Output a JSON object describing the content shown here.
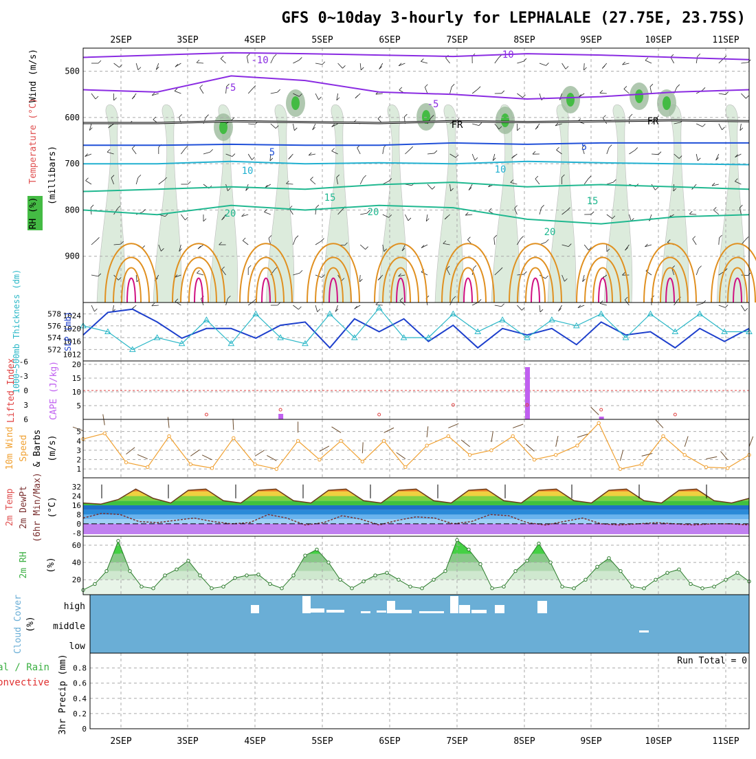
{
  "title": "GFS 0~10day 3-hourly for LEPHALALE (27.75E, 23.75S)",
  "date_labels": [
    "2SEP",
    "3SEP",
    "4SEP",
    "5SEP",
    "6SEP",
    "7SEP",
    "8SEP",
    "9SEP",
    "10SEP",
    "11SEP"
  ],
  "colors": {
    "wind_purple": "#8a2be2",
    "temp_blue": "#1f4fd8",
    "temp_cyan": "#20b0d0",
    "temp_teal": "#20b890",
    "temp_orange": "#e09020",
    "temp_magenta": "#d01080",
    "rh_green": "#3cb043",
    "cloud_blue": "#6aaed6",
    "slp_blue": "#1d3fcc",
    "thick_cyan": "#2ab7c7",
    "lifted_red": "#e04040",
    "cape_violet": "#c060f0",
    "wind_orange": "#f0a030",
    "precip_green": "#3cb043",
    "precip_red": "#e03030"
  },
  "panels": {
    "upper": {
      "label_wind": "Wind (m/s)",
      "label_temp": "Temperature (°C)",
      "label_rh": "RH (%)",
      "label_mb": "(millibars)",
      "freezing_label": "FR",
      "isotherm_labels": [
        "-10",
        "-5",
        "5",
        "10",
        "15",
        "20",
        "-10",
        "-5",
        "5",
        "10",
        "15",
        "20",
        "10",
        "10",
        "10",
        "10"
      ]
    },
    "thickness": {
      "label_left": "1000~500mb Thickness (dm)",
      "label_right": "SLP (mb)"
    },
    "stability": {
      "label_left": "Lifted Index",
      "label_right": "CAPE (J/kg)"
    },
    "wind10": {
      "label_a": "10m Wind",
      "label_b": "Speed",
      "label_c": "& Barbs",
      "label_unit": "(m/s)"
    },
    "temp2m": {
      "label_a": "2m Temp",
      "label_b": "2m DewPt",
      "label_c": "(6hr Min/Max)",
      "label_unit": "(°C)"
    },
    "rh2m": {
      "label_a": "2m RH",
      "label_unit": "(%)"
    },
    "cloud": {
      "label_a": "Cloud Cover",
      "label_unit": "(%)",
      "levels": [
        "high",
        "middle",
        "low"
      ]
    },
    "precip": {
      "label_a": "Total / Rain",
      "label_b": "Convective",
      "label_c": "3hr Precip (mm)",
      "run_total": "Run Total = 0"
    }
  },
  "chart_data": [
    {
      "type": "line",
      "title": "GFS 0~10day 3-hourly for LEPHALALE (27.75E, 23.75S)",
      "panel": "upper-air time-pressure cross section",
      "ylabel": "(millibars)",
      "y_ticks": [
        500,
        600,
        700,
        800,
        900
      ],
      "ylim": [
        1000,
        450
      ],
      "x_categories": [
        "2SEP",
        "3SEP",
        "4SEP",
        "5SEP",
        "6SEP",
        "7SEP",
        "8SEP",
        "9SEP",
        "10SEP",
        "11SEP"
      ],
      "series": [
        {
          "name": "-10",
          "values": [
            470,
            465,
            460,
            462,
            465,
            468,
            462,
            465,
            470,
            475
          ]
        },
        {
          "name": "-5",
          "values": [
            540,
            545,
            510,
            520,
            545,
            550,
            560,
            555,
            545,
            540
          ]
        },
        {
          "name": "FR",
          "values": [
            612,
            612,
            608,
            610,
            612,
            608,
            610,
            608,
            606,
            608
          ]
        },
        {
          "name": "5",
          "values": [
            660,
            660,
            658,
            660,
            660,
            655,
            658,
            655,
            655,
            655
          ]
        },
        {
          "name": "10",
          "values": [
            700,
            700,
            695,
            700,
            698,
            700,
            695,
            698,
            700,
            702
          ]
        },
        {
          "name": "15",
          "values": [
            760,
            755,
            750,
            755,
            745,
            740,
            750,
            745,
            750,
            755
          ]
        },
        {
          "name": "20",
          "values": [
            800,
            810,
            790,
            800,
            790,
            795,
            820,
            830,
            815,
            810
          ]
        }
      ]
    },
    {
      "type": "line",
      "panel": "1000~500mb Thickness (dm) / SLP (mb)",
      "y_ticks_left": [
        572,
        574,
        576,
        578
      ],
      "y_ticks_right": [
        1012,
        1016,
        1020,
        1024
      ],
      "series": [
        {
          "name": "SLP (mb)",
          "values": [
            1018,
            1025,
            1026,
            1022,
            1017,
            1020,
            1020,
            1017,
            1021,
            1022,
            1014,
            1023,
            1019,
            1023,
            1016,
            1021,
            1014,
            1020,
            1018,
            1020,
            1015,
            1022,
            1018,
            1019,
            1014,
            1020,
            1016,
            1020
          ]
        },
        {
          "name": "1000~500mb Thickness (dm)",
          "values": [
            576,
            575,
            572,
            574,
            573,
            577,
            573,
            578,
            574,
            573,
            578,
            574,
            579,
            574,
            574,
            578,
            575,
            577,
            574,
            577,
            576,
            578,
            574,
            578,
            575,
            578,
            575,
            575
          ]
        }
      ]
    },
    {
      "type": "bar",
      "panel": "Lifted Index / CAPE (J/kg)",
      "y_ticks_left": [
        -6,
        -3,
        0,
        3,
        6
      ],
      "y_ticks_right": [
        5,
        10,
        15,
        20
      ],
      "series": [
        {
          "name": "CAPE (J/kg)",
          "values": [
            0,
            0,
            0,
            0,
            0,
            0,
            0,
            0,
            2,
            0,
            0,
            0,
            0,
            0,
            0,
            0,
            0,
            0,
            19,
            0,
            0,
            1,
            0,
            0,
            0,
            0,
            0,
            0
          ]
        },
        {
          "name": "Lifted Index",
          "values": [
            6,
            6,
            6,
            6,
            6,
            5,
            6,
            6,
            4,
            6,
            6,
            6,
            5,
            6,
            6,
            3,
            6,
            6,
            3,
            6,
            6,
            4,
            6,
            6,
            5,
            6,
            6,
            6
          ]
        }
      ]
    },
    {
      "type": "line",
      "panel": "10m Wind Speed & Barbs",
      "ylabel": "(m/s)",
      "y_ticks": [
        1,
        2,
        3,
        4,
        5
      ],
      "series": [
        {
          "name": "10m Wind Speed",
          "values": [
            4.2,
            4.8,
            1.7,
            1.2,
            4.5,
            1.5,
            1.1,
            4.3,
            1.5,
            1.0,
            4.0,
            2.0,
            4.0,
            1.8,
            4.0,
            1.2,
            3.5,
            4.5,
            2.5,
            3.0,
            4.5,
            2.0,
            2.5,
            3.5,
            5.9,
            1.0,
            1.5,
            4.5,
            2.5,
            1.2,
            1.1,
            2.5
          ]
        }
      ]
    },
    {
      "type": "area",
      "panel": "2m Temp / 2m DewPt (6hr Min/Max)",
      "ylabel": "(°C)",
      "y_ticks": [
        -8,
        0,
        8,
        16,
        24,
        32
      ],
      "series": [
        {
          "name": "2m Temp",
          "values": [
            18,
            17,
            21,
            30,
            22,
            18,
            29,
            30,
            20,
            18,
            29,
            30,
            20,
            18,
            29,
            30,
            20,
            18,
            29,
            30,
            20,
            18,
            29,
            30,
            20,
            18,
            29,
            30,
            20,
            18,
            29,
            30,
            20,
            18,
            29,
            30,
            20,
            18,
            22
          ]
        },
        {
          "name": "2m DewPt",
          "values": [
            5,
            9,
            8,
            2,
            1,
            3,
            5,
            2,
            0,
            1,
            8,
            5,
            -1,
            1,
            7,
            4,
            -1,
            3,
            6,
            5,
            0,
            2,
            8,
            7,
            1,
            -1,
            2,
            5,
            0,
            -1,
            0,
            1,
            0,
            -1,
            0,
            0,
            -1
          ]
        }
      ]
    },
    {
      "type": "area",
      "panel": "2m RH",
      "ylabel": "(%)",
      "y_ticks": [
        20,
        40,
        60
      ],
      "series": [
        {
          "name": "2m RH",
          "values": [
            8,
            15,
            30,
            65,
            30,
            12,
            10,
            25,
            32,
            42,
            25,
            10,
            12,
            22,
            25,
            26,
            15,
            10,
            25,
            48,
            55,
            40,
            20,
            10,
            18,
            25,
            28,
            20,
            12,
            10,
            20,
            30,
            66,
            55,
            38,
            10,
            12,
            30,
            42,
            62,
            40,
            12,
            10,
            20,
            35,
            45,
            30,
            12,
            10,
            20,
            28,
            32,
            15,
            10,
            12,
            20,
            28,
            18
          ]
        }
      ]
    },
    {
      "type": "bar",
      "panel": "Cloud Cover",
      "categories": [
        "high",
        "middle",
        "low"
      ]
    },
    {
      "type": "bar",
      "panel": "3hr Precip (mm)",
      "ylabel": "3hr Precip (mm)",
      "y_ticks": [
        0,
        0.2,
        0.4,
        0.6,
        0.8
      ],
      "annotation": "Run Total = 0",
      "series": [
        {
          "name": "Total / Rain",
          "values": []
        },
        {
          "name": "Convective",
          "values": []
        }
      ]
    }
  ]
}
